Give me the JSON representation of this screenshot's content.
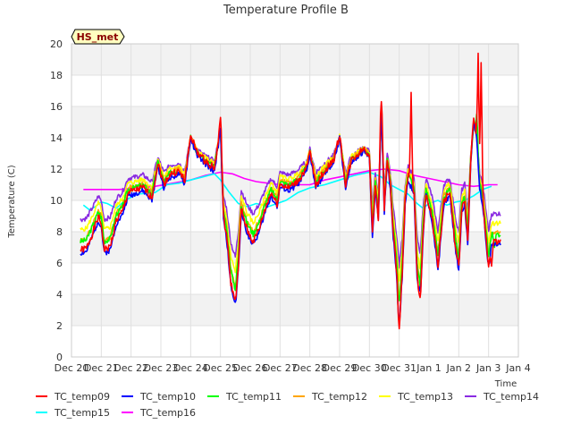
{
  "chart_data": {
    "type": "line",
    "title": "Temperature Profile B",
    "xlabel": "Time",
    "ylabel": "Temperature (C)",
    "badge": "HS_met",
    "ylim": [
      0,
      20
    ],
    "yticks": [
      0,
      2,
      4,
      6,
      8,
      10,
      12,
      14,
      16,
      18,
      20
    ],
    "xlim": [
      0,
      15
    ],
    "xticks": [
      {
        "pos": 0,
        "label": "Dec 20"
      },
      {
        "pos": 1,
        "label": "Dec 21"
      },
      {
        "pos": 2,
        "label": "Dec 22"
      },
      {
        "pos": 3,
        "label": "Dec 23"
      },
      {
        "pos": 4,
        "label": "Dec 24"
      },
      {
        "pos": 5,
        "label": "Dec 25"
      },
      {
        "pos": 6,
        "label": "Dec 26"
      },
      {
        "pos": 7,
        "label": "Dec 27"
      },
      {
        "pos": 8,
        "label": "Dec 28"
      },
      {
        "pos": 9,
        "label": "Dec 29"
      },
      {
        "pos": 10,
        "label": "Dec 30"
      },
      {
        "pos": 11,
        "label": "Dec 31"
      },
      {
        "pos": 12,
        "label": "Jan 1"
      },
      {
        "pos": 13,
        "label": "Jan 2"
      },
      {
        "pos": 14,
        "label": "Jan 3"
      },
      {
        "pos": 15,
        "label": "Jan 4"
      }
    ],
    "x_start": 0.3,
    "x_end": 14.4,
    "base_points": [
      [
        0.3,
        7.0
      ],
      [
        0.5,
        7.1
      ],
      [
        0.7,
        8.0
      ],
      [
        0.9,
        9.0
      ],
      [
        1.0,
        8.6
      ],
      [
        1.1,
        7.0
      ],
      [
        1.3,
        7.2
      ],
      [
        1.5,
        8.8
      ],
      [
        1.7,
        9.3
      ],
      [
        1.9,
        10.5
      ],
      [
        2.1,
        10.6
      ],
      [
        2.4,
        10.8
      ],
      [
        2.7,
        10.2
      ],
      [
        2.9,
        12.3
      ],
      [
        3.1,
        11.0
      ],
      [
        3.3,
        11.6
      ],
      [
        3.6,
        11.8
      ],
      [
        3.8,
        11.2
      ],
      [
        4.0,
        14.0
      ],
      [
        4.2,
        13.0
      ],
      [
        4.5,
        12.4
      ],
      [
        4.8,
        12.0
      ],
      [
        5.0,
        14.5
      ],
      [
        5.1,
        9.0
      ],
      [
        5.2,
        8.0
      ],
      [
        5.35,
        5.0
      ],
      [
        5.5,
        3.8
      ],
      [
        5.6,
        6.0
      ],
      [
        5.7,
        9.5
      ],
      [
        5.9,
        8.2
      ],
      [
        6.1,
        7.5
      ],
      [
        6.3,
        8.3
      ],
      [
        6.5,
        9.5
      ],
      [
        6.7,
        10.5
      ],
      [
        6.9,
        9.8
      ],
      [
        7.0,
        11.0
      ],
      [
        7.3,
        10.8
      ],
      [
        7.6,
        11.2
      ],
      [
        7.9,
        12.0
      ],
      [
        8.0,
        13.0
      ],
      [
        8.2,
        11.0
      ],
      [
        8.5,
        11.8
      ],
      [
        8.8,
        12.5
      ],
      [
        9.0,
        14.0
      ],
      [
        9.2,
        11.0
      ],
      [
        9.4,
        12.5
      ],
      [
        9.6,
        12.8
      ],
      [
        9.8,
        13.2
      ],
      [
        10.0,
        12.8
      ],
      [
        10.1,
        8.0
      ],
      [
        10.2,
        11.0
      ],
      [
        10.3,
        9.0
      ],
      [
        10.4,
        16.0
      ],
      [
        10.5,
        9.5
      ],
      [
        10.6,
        12.5
      ],
      [
        10.7,
        11.0
      ],
      [
        10.8,
        8.0
      ],
      [
        10.9,
        6.0
      ],
      [
        11.0,
        3.0
      ],
      [
        11.1,
        5.5
      ],
      [
        11.2,
        10.0
      ],
      [
        11.3,
        11.5
      ],
      [
        11.5,
        10.5
      ],
      [
        11.6,
        5.5
      ],
      [
        11.7,
        4.0
      ],
      [
        11.8,
        8.0
      ],
      [
        11.9,
        10.5
      ],
      [
        12.1,
        9.0
      ],
      [
        12.3,
        6.0
      ],
      [
        12.5,
        10.0
      ],
      [
        12.7,
        10.5
      ],
      [
        12.9,
        7.0
      ],
      [
        13.0,
        6.0
      ],
      [
        13.1,
        9.5
      ],
      [
        13.2,
        10.0
      ],
      [
        13.3,
        7.5
      ],
      [
        13.4,
        12.5
      ],
      [
        13.5,
        15.0
      ],
      [
        13.6,
        14.0
      ],
      [
        13.7,
        11.0
      ],
      [
        13.8,
        10.0
      ],
      [
        13.9,
        8.0
      ],
      [
        14.0,
        6.0
      ],
      [
        14.1,
        7.5
      ]
    ],
    "series": [
      {
        "name": "TC_temp09",
        "color": "#ff0000",
        "offset": 0.0,
        "amp": 1.05,
        "noise": 0.45,
        "seed": 1,
        "spikes": [
          [
            5.0,
            15.3
          ],
          [
            5.5,
            3.7
          ],
          [
            10.4,
            16.3
          ],
          [
            11.0,
            1.8
          ],
          [
            11.4,
            16.9
          ],
          [
            11.7,
            3.8
          ],
          [
            13.65,
            19.4
          ],
          [
            13.75,
            18.8
          ],
          [
            14.1,
            5.8
          ]
        ]
      },
      {
        "name": "TC_temp10",
        "color": "#0000ff",
        "offset": -0.2,
        "amp": 1.05,
        "noise": 0.35,
        "seed": 2,
        "spikes": [
          [
            5.5,
            3.5
          ],
          [
            11.0,
            2.3
          ],
          [
            11.7,
            4.5
          ],
          [
            14.0,
            6.0
          ]
        ]
      },
      {
        "name": "TC_temp11",
        "color": "#00ff00",
        "offset": 0.2,
        "amp": 0.95,
        "noise": 0.35,
        "seed": 3,
        "spikes": [
          [
            13.6,
            15.5
          ],
          [
            11.0,
            3.6
          ],
          [
            14.2,
            7.0
          ]
        ]
      },
      {
        "name": "TC_temp12",
        "color": "#ffa500",
        "offset": 0.3,
        "amp": 0.95,
        "noise": 0.3,
        "seed": 4,
        "spikes": []
      },
      {
        "name": "TC_temp13",
        "color": "#ffff00",
        "offset": 0.6,
        "amp": 0.85,
        "noise": 0.3,
        "seed": 5,
        "spikes": []
      },
      {
        "name": "TC_temp14",
        "color": "#8a2be2",
        "offset": 0.9,
        "amp": 0.75,
        "noise": 0.3,
        "seed": 6,
        "spikes": []
      },
      {
        "name": "TC_temp15",
        "color": "#00ffff",
        "offset": 0.0,
        "amp": 0.0,
        "noise": 0.0,
        "seed": 7,
        "points": [
          [
            0.4,
            9.7
          ],
          [
            0.6,
            9.4
          ],
          [
            0.8,
            9.6
          ],
          [
            1.0,
            9.9
          ],
          [
            1.2,
            9.8
          ],
          [
            1.5,
            9.5
          ],
          [
            1.8,
            10.0
          ],
          [
            2.2,
            10.4
          ],
          [
            2.8,
            10.5
          ],
          [
            3.2,
            11.0
          ],
          [
            3.6,
            11.1
          ],
          [
            4.0,
            11.3
          ],
          [
            4.4,
            11.5
          ],
          [
            4.8,
            11.7
          ],
          [
            5.0,
            11.3
          ],
          [
            5.3,
            10.5
          ],
          [
            5.6,
            9.8
          ],
          [
            5.9,
            9.6
          ],
          [
            6.2,
            9.8
          ],
          [
            6.6,
            9.6
          ],
          [
            6.9,
            9.8
          ],
          [
            7.2,
            10.0
          ],
          [
            7.6,
            10.5
          ],
          [
            8.0,
            10.8
          ],
          [
            8.5,
            11.0
          ],
          [
            9.0,
            11.3
          ],
          [
            9.5,
            11.6
          ],
          [
            10.0,
            11.8
          ],
          [
            10.4,
            11.5
          ],
          [
            10.7,
            11.0
          ],
          [
            11.0,
            10.7
          ],
          [
            11.3,
            10.4
          ],
          [
            11.6,
            9.8
          ],
          [
            11.8,
            9.5
          ],
          [
            12.0,
            9.8
          ],
          [
            12.3,
            10.0
          ],
          [
            12.6,
            9.7
          ],
          [
            12.9,
            9.9
          ],
          [
            13.2,
            10.0
          ],
          [
            13.5,
            10.3
          ],
          [
            13.8,
            10.7
          ],
          [
            14.1,
            10.9
          ]
        ]
      },
      {
        "name": "TC_temp16",
        "color": "#ff00ff",
        "offset": 0.0,
        "amp": 0.0,
        "noise": 0.0,
        "seed": 8,
        "points": [
          [
            0.4,
            10.7
          ],
          [
            1.0,
            10.7
          ],
          [
            1.6,
            10.7
          ],
          [
            2.2,
            10.8
          ],
          [
            2.8,
            10.9
          ],
          [
            3.4,
            11.1
          ],
          [
            4.0,
            11.3
          ],
          [
            4.5,
            11.6
          ],
          [
            5.0,
            11.8
          ],
          [
            5.4,
            11.7
          ],
          [
            5.8,
            11.4
          ],
          [
            6.2,
            11.2
          ],
          [
            6.6,
            11.1
          ],
          [
            7.0,
            11.0
          ],
          [
            7.5,
            11.0
          ],
          [
            8.0,
            11.0
          ],
          [
            8.5,
            11.3
          ],
          [
            9.0,
            11.5
          ],
          [
            9.5,
            11.7
          ],
          [
            10.0,
            11.9
          ],
          [
            10.5,
            12.0
          ],
          [
            11.0,
            11.9
          ],
          [
            11.5,
            11.6
          ],
          [
            12.0,
            11.4
          ],
          [
            12.5,
            11.2
          ],
          [
            13.0,
            11.0
          ],
          [
            13.5,
            10.9
          ],
          [
            14.0,
            11.0
          ],
          [
            14.3,
            11.0
          ]
        ]
      }
    ]
  }
}
